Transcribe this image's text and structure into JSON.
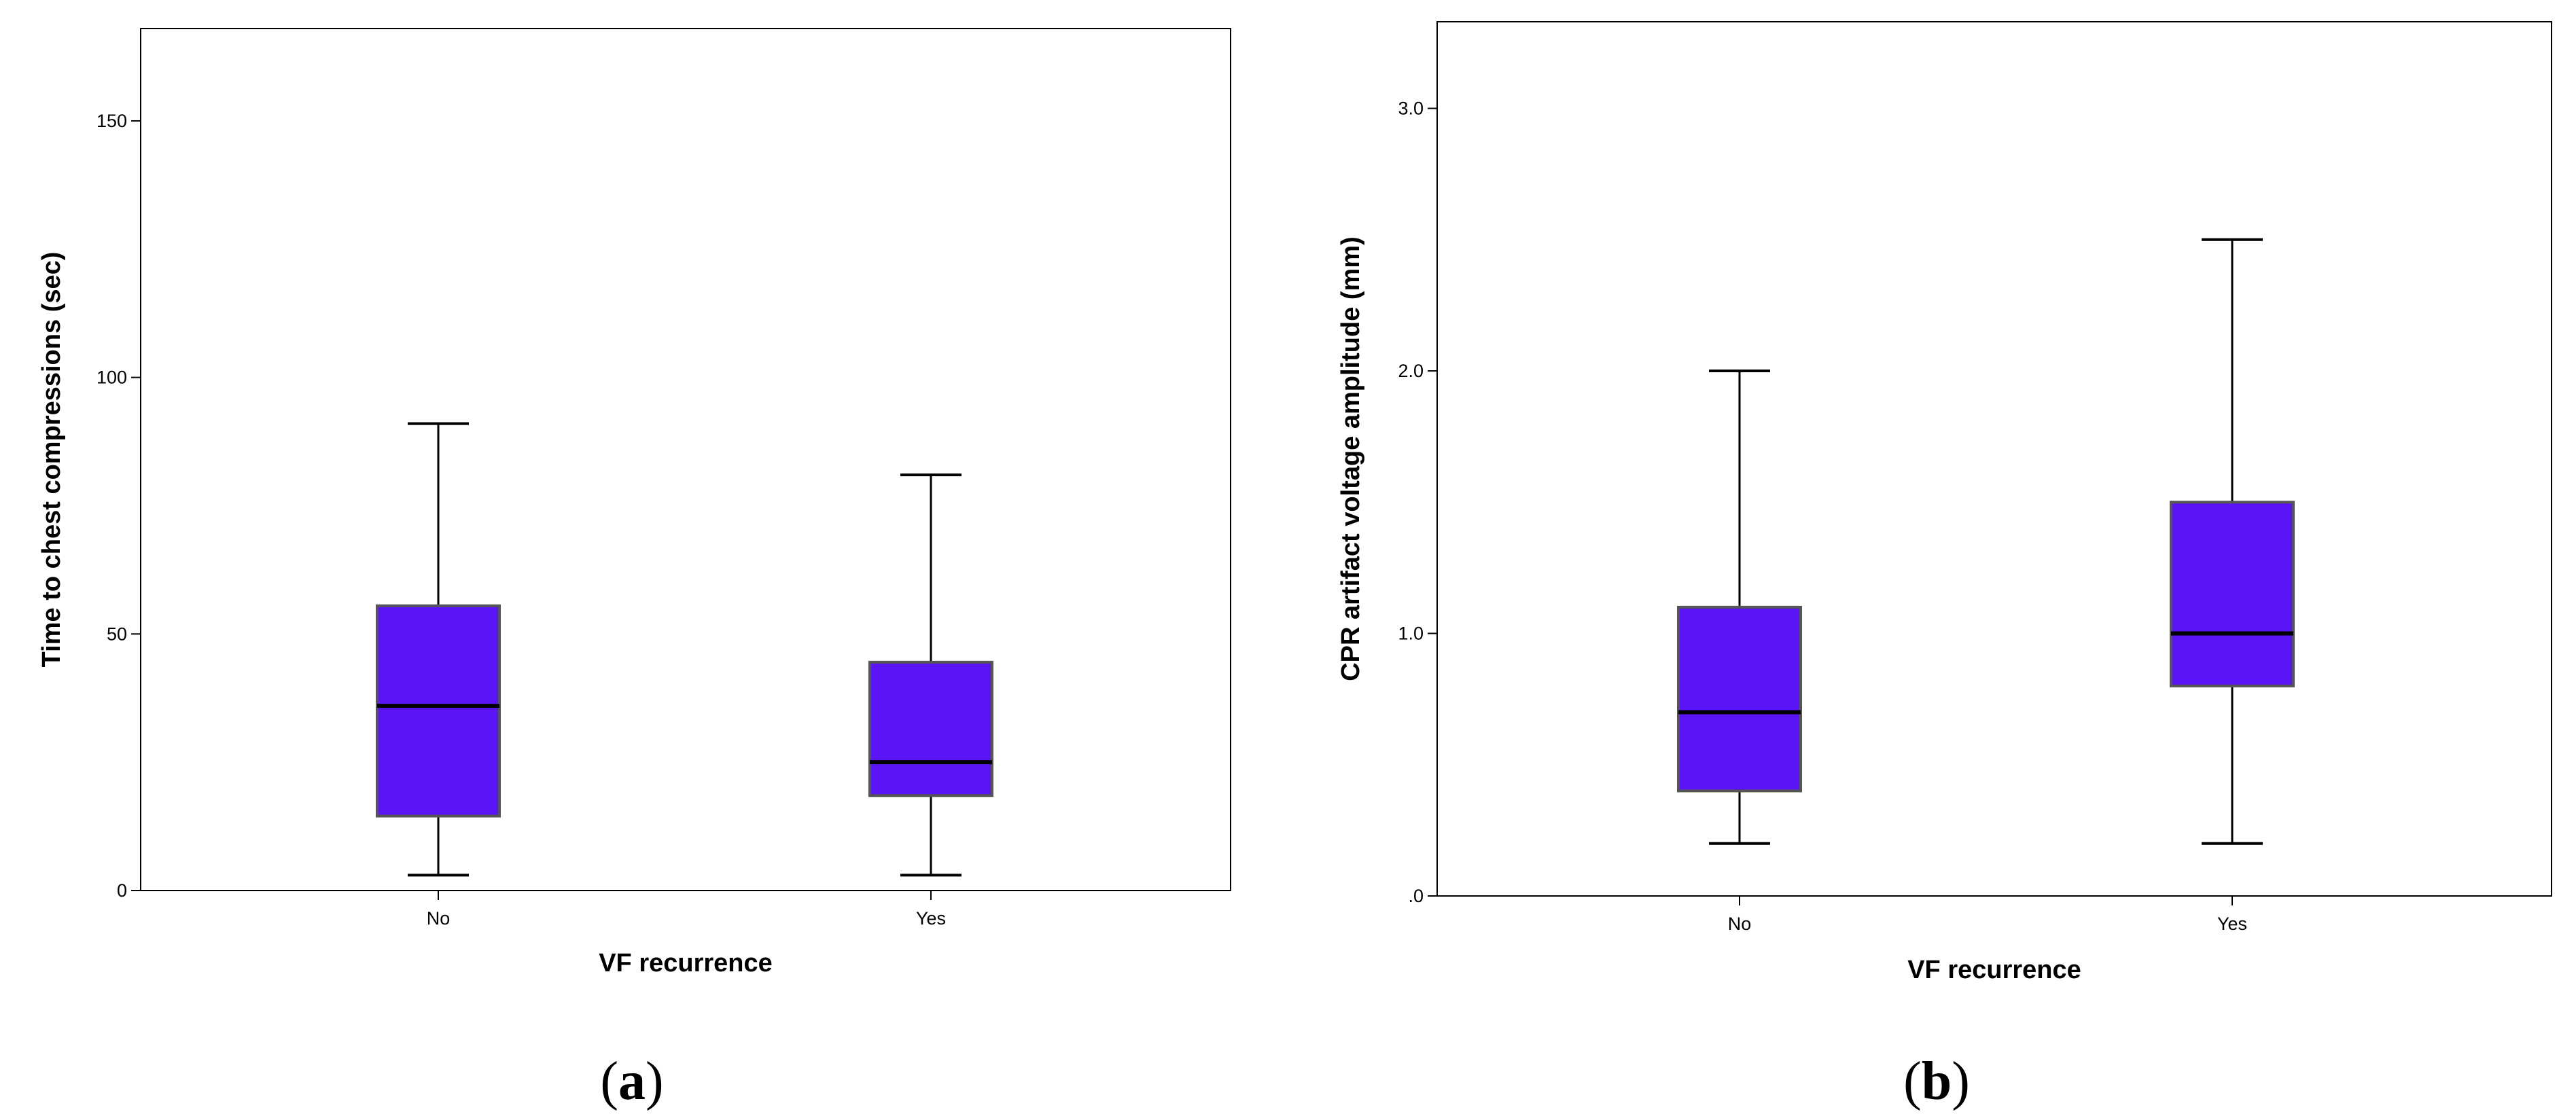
{
  "chart_data": [
    {
      "type": "box",
      "panel_label": "a",
      "xlabel": "VF recurrence",
      "ylabel": "Time to chest compressions (sec)",
      "categories": [
        "No",
        "Yes"
      ],
      "ylim": [
        0,
        168
      ],
      "yticks": [
        0,
        50,
        100,
        150
      ],
      "ytick_labels": [
        "0",
        "50",
        "100",
        "150"
      ],
      "boxes": [
        {
          "category": "No",
          "min": 3,
          "q1": 14.5,
          "median": 36,
          "q3": 55.5,
          "max": 91
        },
        {
          "category": "Yes",
          "min": 3,
          "q1": 18.5,
          "median": 25,
          "q3": 44.5,
          "max": 81
        }
      ],
      "box_color": "#5a14f5",
      "grid": false,
      "legend": "none"
    },
    {
      "type": "box",
      "panel_label": "b",
      "xlabel": "VF recurrence",
      "ylabel": "CPR artifact voltage amplitude (mm)",
      "categories": [
        "No",
        "Yes"
      ],
      "ylim": [
        0,
        3.33
      ],
      "yticks": [
        0,
        1,
        2,
        3
      ],
      "ytick_labels": [
        ".0",
        "1.0",
        "2.0",
        "3.0"
      ],
      "boxes": [
        {
          "category": "No",
          "min": 0.2,
          "q1": 0.4,
          "median": 0.7,
          "q3": 1.1,
          "max": 2.0
        },
        {
          "category": "Yes",
          "min": 0.2,
          "q1": 0.8,
          "median": 1.0,
          "q3": 1.5,
          "max": 2.5
        }
      ],
      "box_color": "#5a14f5",
      "grid": false,
      "legend": "none"
    }
  ]
}
